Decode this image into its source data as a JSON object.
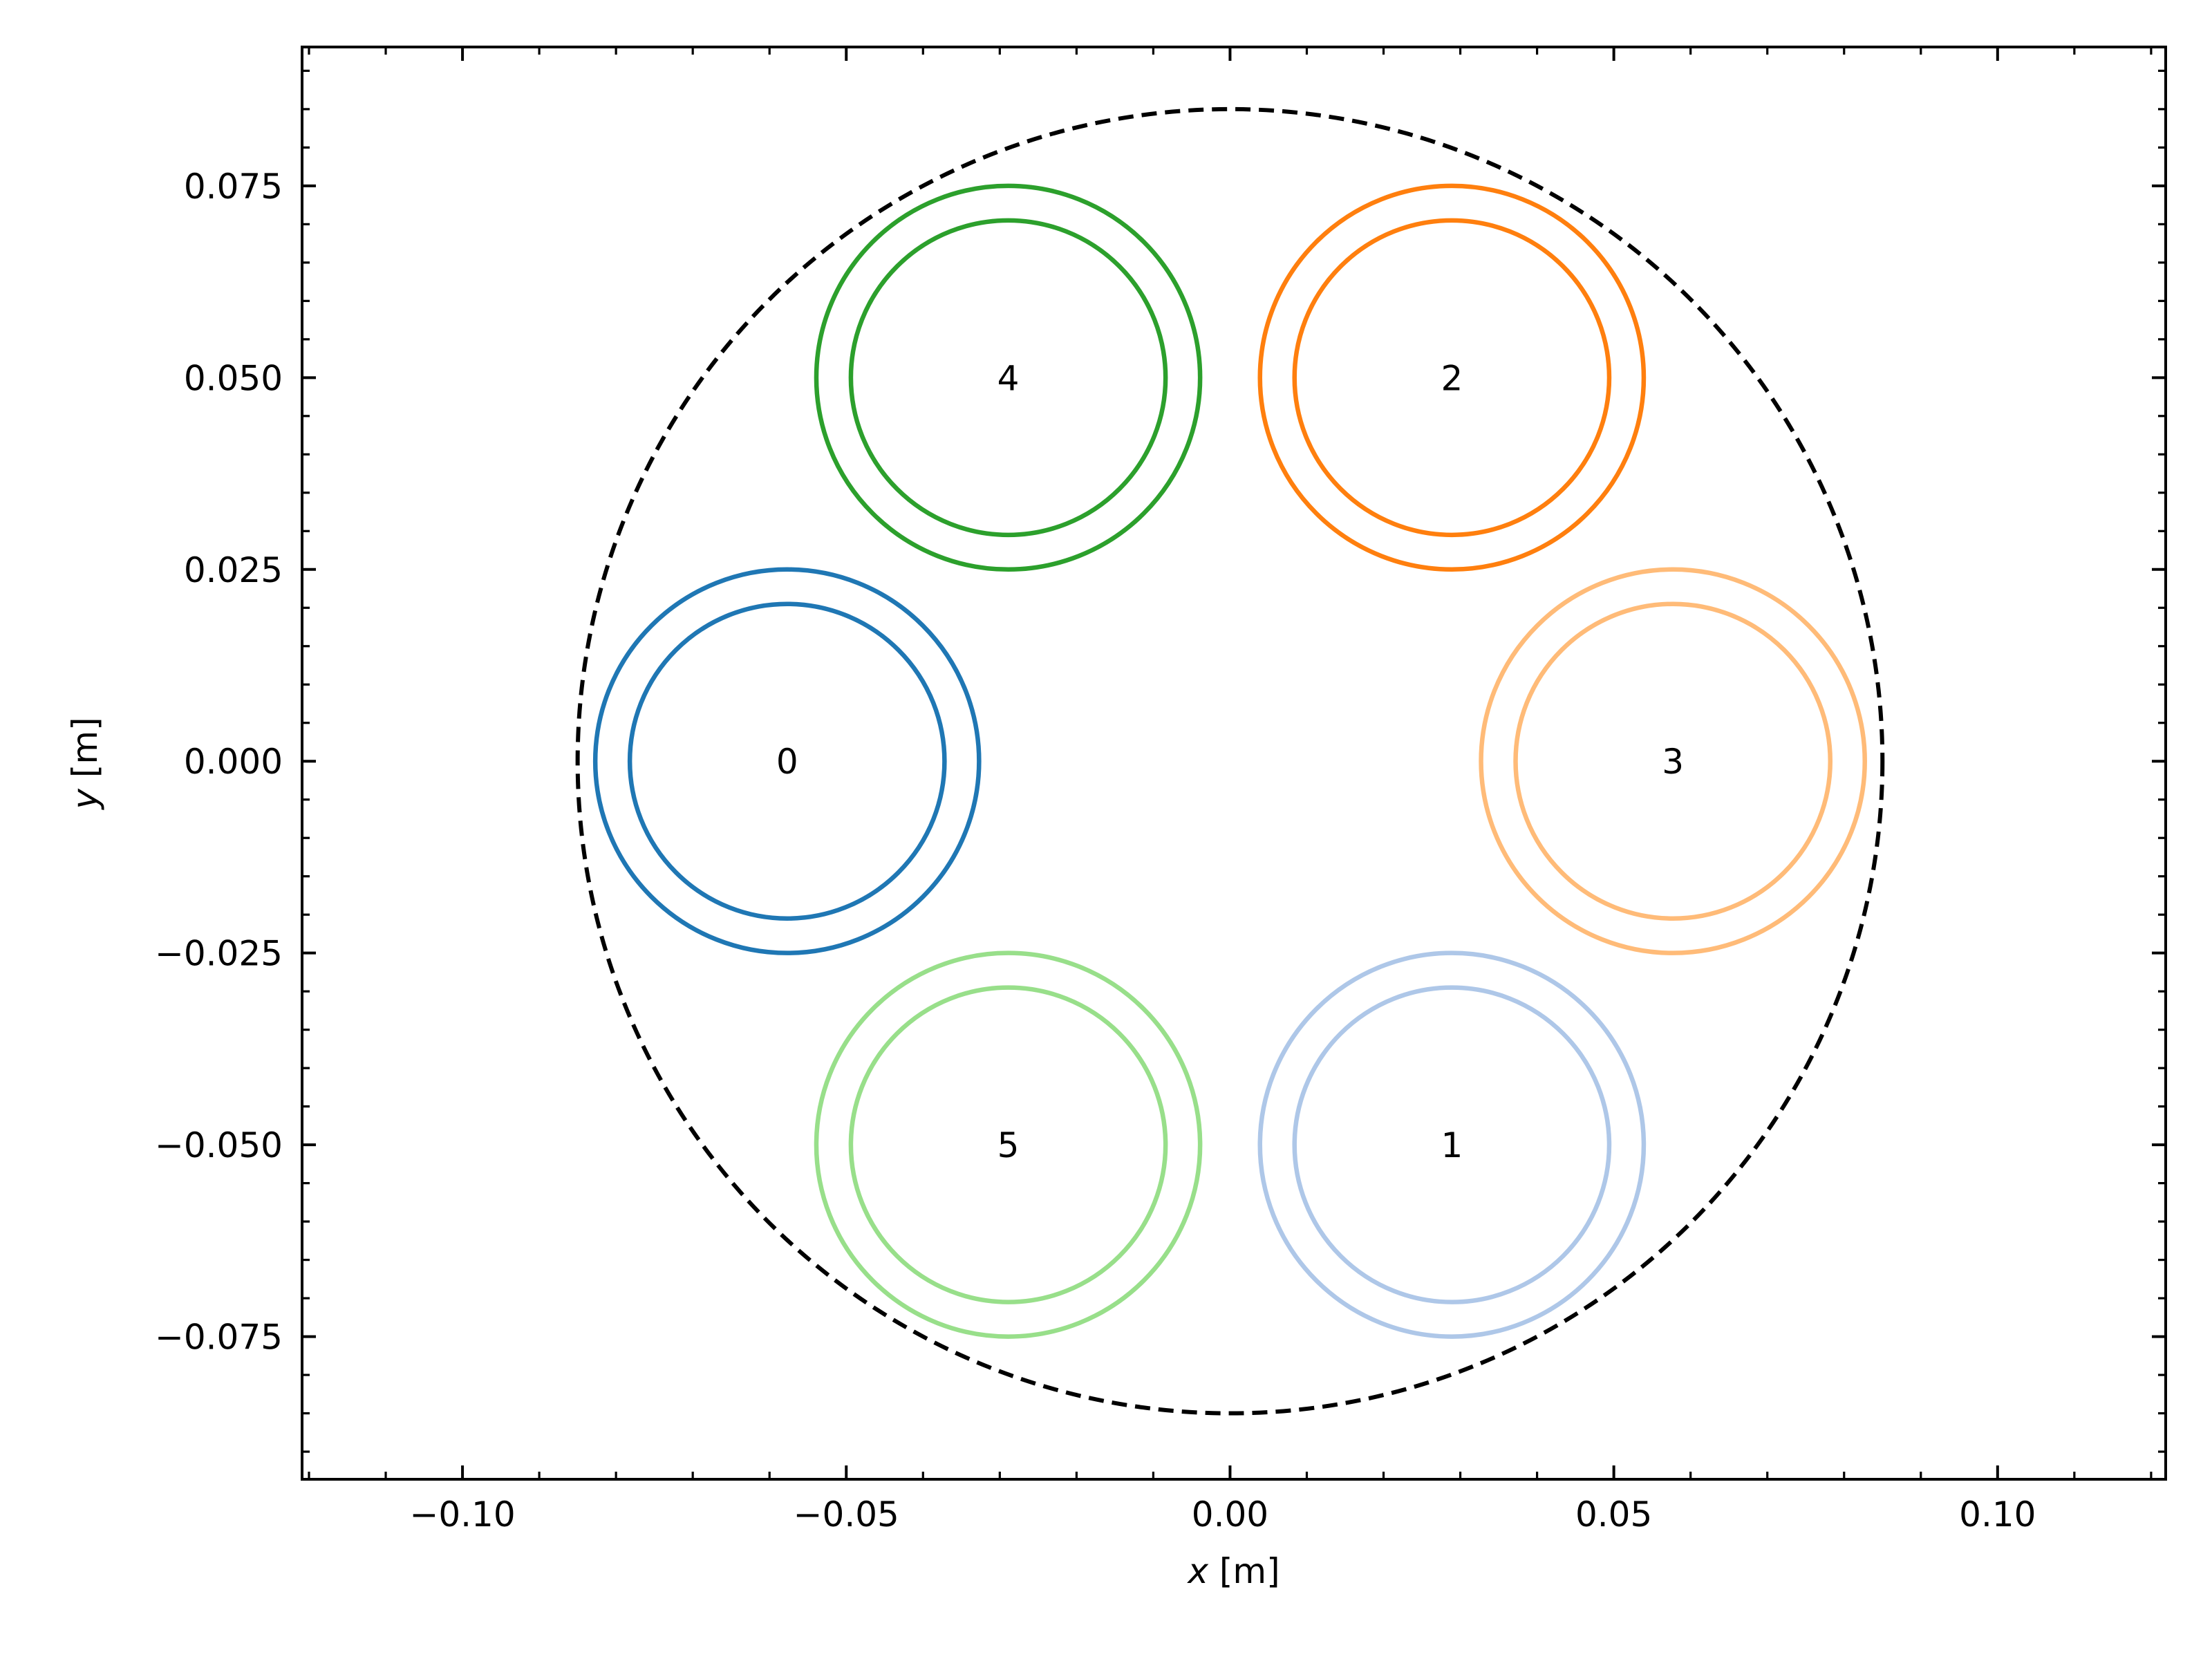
{
  "chart_data": {
    "type": "diagram-circles",
    "title": "",
    "xlabel_var": "x",
    "xlabel_unit": "[m]",
    "ylabel_var": "y",
    "ylabel_unit": "[m]",
    "xlim": [
      -0.1209,
      0.1219
    ],
    "ylim": [
      -0.0936,
      0.0931
    ],
    "aspect": "equal",
    "grid": false,
    "legend": null,
    "x_major_ticks": [
      -0.1,
      -0.05,
      0.0,
      0.05,
      0.1
    ],
    "x_tick_labels": [
      "−0.10",
      "−0.05",
      "0.00",
      "0.05",
      "0.10"
    ],
    "x_minor_step": 0.01,
    "y_major_ticks": [
      -0.075,
      -0.05,
      -0.025,
      0.0,
      0.025,
      0.05,
      0.075
    ],
    "y_tick_labels": [
      "−0.075",
      "−0.050",
      "−0.025",
      "0.000",
      "0.025",
      "0.050",
      "0.075"
    ],
    "y_minor_step": 0.005,
    "boundary": {
      "cx": 0.0,
      "cy": 0.0,
      "r": 0.085,
      "style": "dashed",
      "color": "#000000"
    },
    "circles": [
      {
        "label": "0",
        "cx": -0.0577,
        "cy": 0.0,
        "r_outer": 0.025,
        "r_inner": 0.0205,
        "color": "#1f77b4"
      },
      {
        "label": "1",
        "cx": 0.0289,
        "cy": -0.05,
        "r_outer": 0.025,
        "r_inner": 0.0205,
        "color": "#aec7e8"
      },
      {
        "label": "2",
        "cx": 0.0289,
        "cy": 0.05,
        "r_outer": 0.025,
        "r_inner": 0.0205,
        "color": "#ff7f0e"
      },
      {
        "label": "3",
        "cx": 0.0577,
        "cy": 0.0,
        "r_outer": 0.025,
        "r_inner": 0.0205,
        "color": "#ffbb78"
      },
      {
        "label": "4",
        "cx": -0.0289,
        "cy": 0.05,
        "r_outer": 0.025,
        "r_inner": 0.0205,
        "color": "#2ca02c"
      },
      {
        "label": "5",
        "cx": -0.0289,
        "cy": -0.05,
        "r_outer": 0.025,
        "r_inner": 0.0205,
        "color": "#98df8a"
      }
    ]
  }
}
